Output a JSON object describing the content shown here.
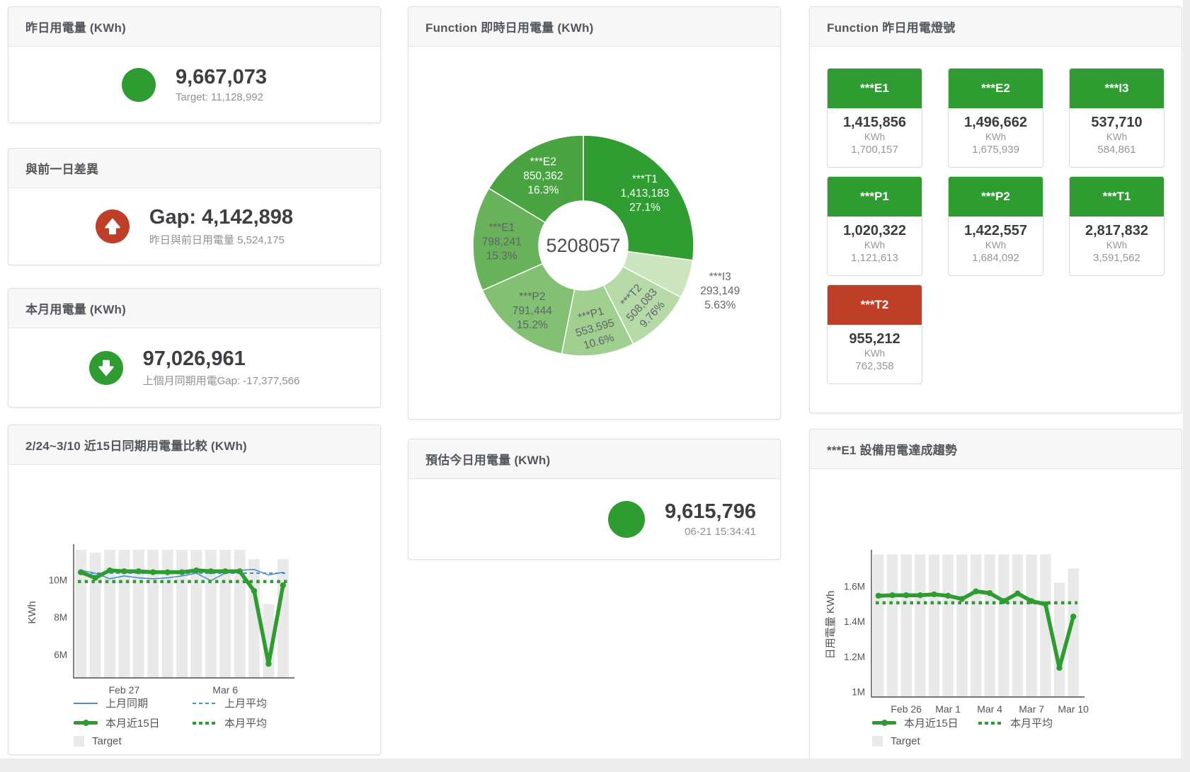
{
  "colors": {
    "green": "#2e9c31",
    "red": "#bf3e27",
    "blue": "#4a8fcb",
    "bar_gray": "#e9e9e9",
    "header_bg": "#f7f7f7",
    "text_dark": "#3d3f42",
    "text_gray": "#8d9094"
  },
  "cards": {
    "yesterday": {
      "title": "昨日用電量 (KWh)",
      "value": "9,667,073",
      "subtitle": "Target: 11,128,992",
      "status_icon": "green-circle"
    },
    "day_gap": {
      "title": "與前一日差異",
      "value": "Gap: 4,142,898",
      "subtitle": "昨日與前日用電量 5,524,175",
      "status_icon": "red-circle-up-arrow"
    },
    "month": {
      "title": "本月用電量 (KWh)",
      "value": "97,026,961",
      "subtitle": "上個月同期用電Gap: -17,377,566",
      "status_icon": "green-circle-down-arrow"
    },
    "estimate": {
      "title": "預估今日用電量 (KWh)",
      "value": "9,615,796",
      "subtitle": "06-21 15:34:41",
      "status_icon": "green-circle"
    },
    "compare": {
      "title": "2/24~3/10 近15日同期用電量比較 (KWh)"
    },
    "realtime_pie": {
      "title": "Function 即時日用電量 (KWh)"
    },
    "lights": {
      "title": "Function 昨日用電燈號"
    },
    "trend": {
      "title": "***E1 設備用電達成趨勢"
    }
  },
  "lights_tiles": [
    {
      "name": "***E1",
      "value": "1,415,856",
      "unit": "KWh",
      "target": "1,700,157",
      "status": "green"
    },
    {
      "name": "***E2",
      "value": "1,496,662",
      "unit": "KWh",
      "target": "1,675,939",
      "status": "green"
    },
    {
      "name": "***I3",
      "value": "537,710",
      "unit": "KWh",
      "target": "584,861",
      "status": "green"
    },
    {
      "name": "***P1",
      "value": "1,020,322",
      "unit": "KWh",
      "target": "1,121,613",
      "status": "green"
    },
    {
      "name": "***P2",
      "value": "1,422,557",
      "unit": "KWh",
      "target": "1,684,092",
      "status": "green"
    },
    {
      "name": "***T1",
      "value": "2,817,832",
      "unit": "KWh",
      "target": "3,591,562",
      "status": "green"
    },
    {
      "name": "***T2",
      "value": "955,212",
      "unit": "KWh",
      "target": "762,358",
      "status": "red"
    }
  ],
  "chart_data": [
    {
      "type": "pie",
      "title": "Function 即時日用電量 (KWh)",
      "center_total": "5208057",
      "slices": [
        {
          "name": "***T1",
          "value": 1413183,
          "label_value": "1,413,183",
          "pct": "27.1%",
          "color": "#2f9d32",
          "label_pos": "inside",
          "label_color": "#ffffff",
          "rotate": 0
        },
        {
          "name": "***I3",
          "value": 293149,
          "label_value": "293,149",
          "pct": "5.63%",
          "color": "#cbe5bf",
          "label_pos": "outside",
          "label_color": "#666666",
          "rotate": 0
        },
        {
          "name": "***T2",
          "value": 508083,
          "label_value": "508,083",
          "pct": "9.76%",
          "color": "#b5daa7",
          "label_pos": "inside",
          "label_color": "#5f6368",
          "rotate": -48
        },
        {
          "name": "***P1",
          "value": 553595,
          "label_value": "553,595",
          "pct": "10.6%",
          "color": "#a0cf90",
          "label_pos": "inside",
          "label_color": "#5f6368",
          "rotate": -16
        },
        {
          "name": "***P2",
          "value": 791444,
          "label_value": "791,444",
          "pct": "15.2%",
          "color": "#83c074",
          "label_pos": "inside",
          "label_color": "#5f6368",
          "rotate": 0
        },
        {
          "name": "***E1",
          "value": 798241,
          "label_value": "798,241",
          "pct": "15.3%",
          "color": "#68b25c",
          "label_pos": "inside",
          "label_color": "#5f6368",
          "rotate": 0
        },
        {
          "name": "***E2",
          "value": 850362,
          "label_value": "850,362",
          "pct": "16.3%",
          "color": "#49a341",
          "label_pos": "inside",
          "label_color": "#ffffff",
          "rotate": 0
        }
      ]
    },
    {
      "type": "line",
      "title": "2/24~3/10 近15日同期用電量比較 (KWh)",
      "ylabel": "KWh",
      "unit": "M KWh",
      "ylim": [
        4.75,
        11.75
      ],
      "grid": false,
      "legend_position": "bottom-left",
      "yticks": [
        {
          "v": 6,
          "label": "6M"
        },
        {
          "v": 8,
          "label": "8M"
        },
        {
          "v": 10,
          "label": "10M"
        }
      ],
      "xticks": [
        {
          "i": 3,
          "label": "Feb 27"
        },
        {
          "i": 10,
          "label": "Mar 6"
        }
      ],
      "categories": [
        "2/24",
        "2/25",
        "2/26",
        "2/27",
        "2/28",
        "3/1",
        "3/2",
        "3/3",
        "3/4",
        "3/5",
        "3/6",
        "3/7",
        "3/8",
        "3/9",
        "3/10"
      ],
      "target_bars": [
        11.6,
        11.45,
        11.6,
        11.6,
        11.6,
        11.6,
        11.6,
        11.6,
        11.6,
        11.6,
        11.6,
        11.6,
        11.1,
        8.7,
        11.1
      ],
      "series": [
        {
          "name": "上月同期",
          "style": "thin-line",
          "color": "#4a8fcb",
          "values": [
            10.5,
            10.35,
            10.05,
            10.2,
            10.1,
            10.05,
            10.1,
            10.2,
            10.35,
            9.95,
            10.35,
            10.5,
            10.55,
            10.25,
            10.4
          ]
        },
        {
          "name": "上月平均",
          "style": "dash-line",
          "color": "#4a8fcb",
          "values": 10.35
        },
        {
          "name": "本月近15日",
          "style": "thick-line",
          "color": "#2e9c31",
          "values": [
            10.4,
            10.1,
            10.5,
            10.45,
            10.45,
            10.4,
            10.4,
            10.4,
            10.5,
            10.45,
            10.45,
            10.45,
            9.4,
            5.5,
            9.7
          ]
        },
        {
          "name": "本月平均",
          "style": "dot-line",
          "color": "#2e9c31",
          "values": 9.9
        },
        {
          "name": "Target",
          "style": "bar",
          "color": "#e9e9e9"
        }
      ]
    },
    {
      "type": "line",
      "title": "***E1 設備用電達成趨勢",
      "ylabel": "日用電量 KWh",
      "unit": "M KWh",
      "ylim": [
        0.97,
        1.79
      ],
      "grid": false,
      "legend_position": "bottom-left",
      "yticks": [
        {
          "v": 1,
          "label": "1M"
        },
        {
          "v": 1.2,
          "label": "1.2M"
        },
        {
          "v": 1.4,
          "label": "1.4M"
        },
        {
          "v": 1.6,
          "label": "1.6M"
        }
      ],
      "xticks": [
        {
          "i": 2,
          "label": "Feb 26"
        },
        {
          "i": 5,
          "label": "Mar 1"
        },
        {
          "i": 8,
          "label": "Mar 4"
        },
        {
          "i": 11,
          "label": "Mar 7"
        },
        {
          "i": 14,
          "label": "Mar 10"
        }
      ],
      "categories": [
        "2/24",
        "2/25",
        "2/26",
        "2/27",
        "2/28",
        "3/1",
        "3/2",
        "3/3",
        "3/4",
        "3/5",
        "3/6",
        "3/7",
        "3/8",
        "3/9",
        "3/10"
      ],
      "target_bars": [
        1.78,
        1.78,
        1.78,
        1.78,
        1.78,
        1.78,
        1.78,
        1.78,
        1.78,
        1.78,
        1.78,
        1.78,
        1.78,
        1.62,
        1.7
      ],
      "series": [
        {
          "name": "本月近15日",
          "style": "thick-line",
          "color": "#2e9c31",
          "values": [
            1.545,
            1.548,
            1.548,
            1.548,
            1.553,
            1.545,
            1.527,
            1.57,
            1.56,
            1.515,
            1.558,
            1.515,
            1.497,
            1.135,
            1.427
          ]
        },
        {
          "name": "本月平均",
          "style": "dot-line",
          "color": "#2e9c31",
          "values": 1.505
        },
        {
          "name": "Target",
          "style": "bar",
          "color": "#e9e9e9"
        }
      ]
    }
  ],
  "legends": {
    "compare": [
      {
        "label": "上月同期",
        "icon": "thin-line",
        "color": "#4a8fcb"
      },
      {
        "label": "上月平均",
        "icon": "dash-line",
        "color": "#4a8fcb"
      },
      {
        "label": "本月近15日",
        "icon": "thick-line",
        "color": "#2e9c31"
      },
      {
        "label": "本月平均",
        "icon": "dot-line",
        "color": "#2e9c31"
      },
      {
        "label": "Target",
        "icon": "square",
        "color": "#e9e9e9"
      }
    ],
    "trend": [
      {
        "label": "本月近15日",
        "icon": "thick-line",
        "color": "#2e9c31"
      },
      {
        "label": "本月平均",
        "icon": "dot-line",
        "color": "#2e9c31"
      },
      {
        "label": "Target",
        "icon": "square",
        "color": "#e9e9e9"
      }
    ]
  }
}
